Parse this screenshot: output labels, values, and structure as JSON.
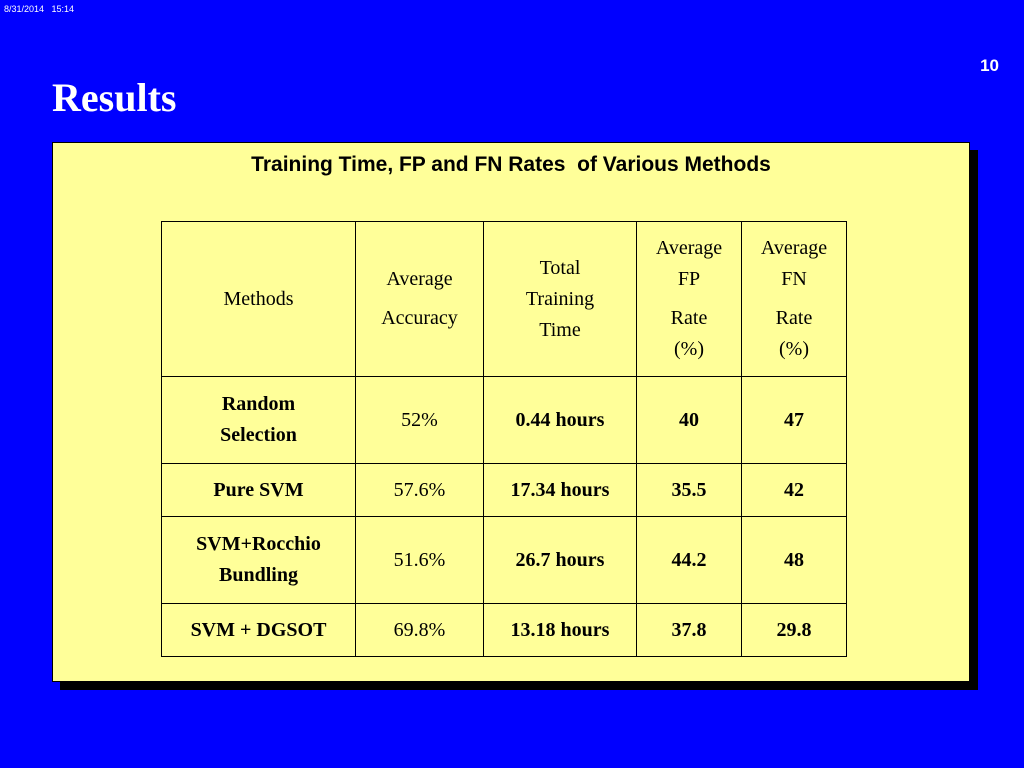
{
  "datestamp": "8/31/2014   15:14",
  "page_number": "10",
  "slide_title": "Results",
  "panel": {
    "caption": "Training Time, FP and FN Rates  of Various Methods"
  },
  "table": {
    "headers": {
      "methods": "Methods",
      "accuracy_l1": "Average",
      "accuracy_l2": "Accuracy",
      "time_l1": "Total",
      "time_l2": "Training",
      "time_l3": "Time",
      "fp_l1": "Average",
      "fp_l2": "FP",
      "fp_l3": "Rate",
      "fp_l4": "(%)",
      "fn_l1": "Average",
      "fn_l2": "FN",
      "fn_l3": "Rate",
      "fn_l4": "(%)"
    },
    "rows": [
      {
        "method_l1": "Random",
        "method_l2": "Selection",
        "accuracy": "52%",
        "time": "0.44 hours",
        "fp": "40",
        "fn": "47"
      },
      {
        "method": "Pure SVM",
        "accuracy": "57.6%",
        "time": "17.34 hours",
        "fp": "35.5",
        "fn": "42"
      },
      {
        "method_l1": "SVM+Rocchio",
        "method_l2": "Bundling",
        "accuracy": "51.6%",
        "time": "26.7 hours",
        "fp": "44.2",
        "fn": "48"
      },
      {
        "method": "SVM + DGSOT",
        "accuracy": "69.8%",
        "time": "13.18 hours",
        "fp": "37.8",
        "fn": "29.8"
      }
    ]
  }
}
